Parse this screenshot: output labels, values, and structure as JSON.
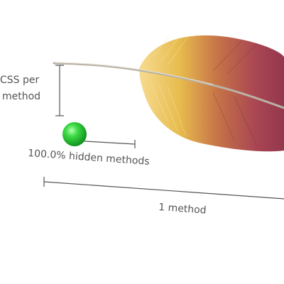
{
  "diagram": {
    "vertical_measure_label_line1": "CSS per",
    "vertical_measure_label_line2": "method",
    "hidden_methods_label": "100.0% hidden methods",
    "horizontal_measure_label": "1 method",
    "hidden_methods_fraction": 1.0,
    "method_count": 1
  },
  "colors": {
    "feather_base": "#e6b844",
    "feather_tip": "#9a3248",
    "marker": "#22bb33",
    "measure_line": "#555555"
  }
}
